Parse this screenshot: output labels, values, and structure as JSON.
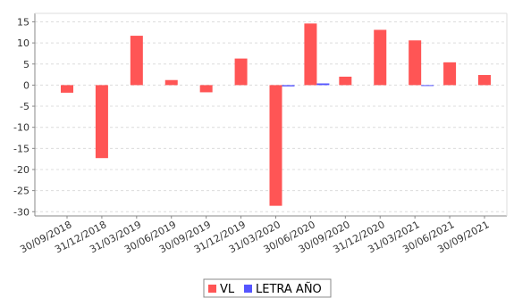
{
  "chart_data": {
    "type": "bar",
    "categories": [
      "30/09/2018",
      "31/12/2018",
      "31/03/2019",
      "30/06/2019",
      "30/09/2019",
      "31/12/2019",
      "31/03/2020",
      "30/06/2020",
      "30/09/2020",
      "31/12/2020",
      "31/03/2021",
      "30/06/2021",
      "30/09/2021"
    ],
    "series": [
      {
        "name": "VL",
        "color": "#ff5555",
        "values": [
          -1.8,
          -17.3,
          11.7,
          1.2,
          -1.7,
          6.3,
          -28.6,
          14.6,
          2.0,
          13.1,
          10.6,
          5.4,
          2.4
        ]
      },
      {
        "name": "LETRA AÑO",
        "color": "#5555ff",
        "values": [
          0.0,
          0.0,
          0.0,
          0.0,
          0.0,
          0.0,
          -0.3,
          0.4,
          0.0,
          0.0,
          -0.2,
          0.0,
          0.0
        ]
      }
    ],
    "ylim": [
      -31,
      17
    ],
    "yticks": [
      15,
      10,
      5,
      0,
      -5,
      -10,
      -15,
      -20,
      -25,
      -30
    ],
    "grid": true,
    "legend_position": "bottom-center"
  }
}
